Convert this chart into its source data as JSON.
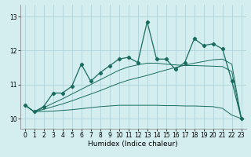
{
  "title": "",
  "xlabel": "Humidex (Indice chaleur)",
  "background_color": "#d4eef0",
  "grid_color": "#aacdd4",
  "line_color": "#1a6b5e",
  "xlim": [
    -0.5,
    23.5
  ],
  "ylim": [
    9.7,
    13.35
  ],
  "yticks": [
    10,
    11,
    12,
    13
  ],
  "xticks": [
    0,
    1,
    2,
    3,
    4,
    5,
    6,
    7,
    8,
    9,
    10,
    11,
    12,
    13,
    14,
    15,
    16,
    17,
    18,
    19,
    20,
    21,
    22,
    23
  ],
  "main_y": [
    10.4,
    10.2,
    10.35,
    10.75,
    10.75,
    10.95,
    11.6,
    11.1,
    11.35,
    11.55,
    11.75,
    11.8,
    11.65,
    12.85,
    11.75,
    11.75,
    11.45,
    11.65,
    12.35,
    12.15,
    12.2,
    12.05,
    11.1,
    10.0
  ],
  "trend_upper_y": [
    10.4,
    10.2,
    10.32,
    10.45,
    10.58,
    10.72,
    10.86,
    11.0,
    11.14,
    11.28,
    11.42,
    11.52,
    11.58,
    11.63,
    11.63,
    11.6,
    11.58,
    11.56,
    11.56,
    11.55,
    11.54,
    11.53,
    11.38,
    10.0
  ],
  "trend_mid_y": [
    10.4,
    10.2,
    10.27,
    10.35,
    10.43,
    10.52,
    10.62,
    10.72,
    10.82,
    10.93,
    11.04,
    11.13,
    11.2,
    11.27,
    11.35,
    11.43,
    11.5,
    11.57,
    11.63,
    11.68,
    11.73,
    11.75,
    11.6,
    10.0
  ],
  "trend_lower_y": [
    10.4,
    10.2,
    10.21,
    10.22,
    10.24,
    10.26,
    10.29,
    10.32,
    10.35,
    10.37,
    10.39,
    10.39,
    10.39,
    10.39,
    10.39,
    10.38,
    10.38,
    10.37,
    10.37,
    10.36,
    10.35,
    10.3,
    10.1,
    10.0
  ]
}
